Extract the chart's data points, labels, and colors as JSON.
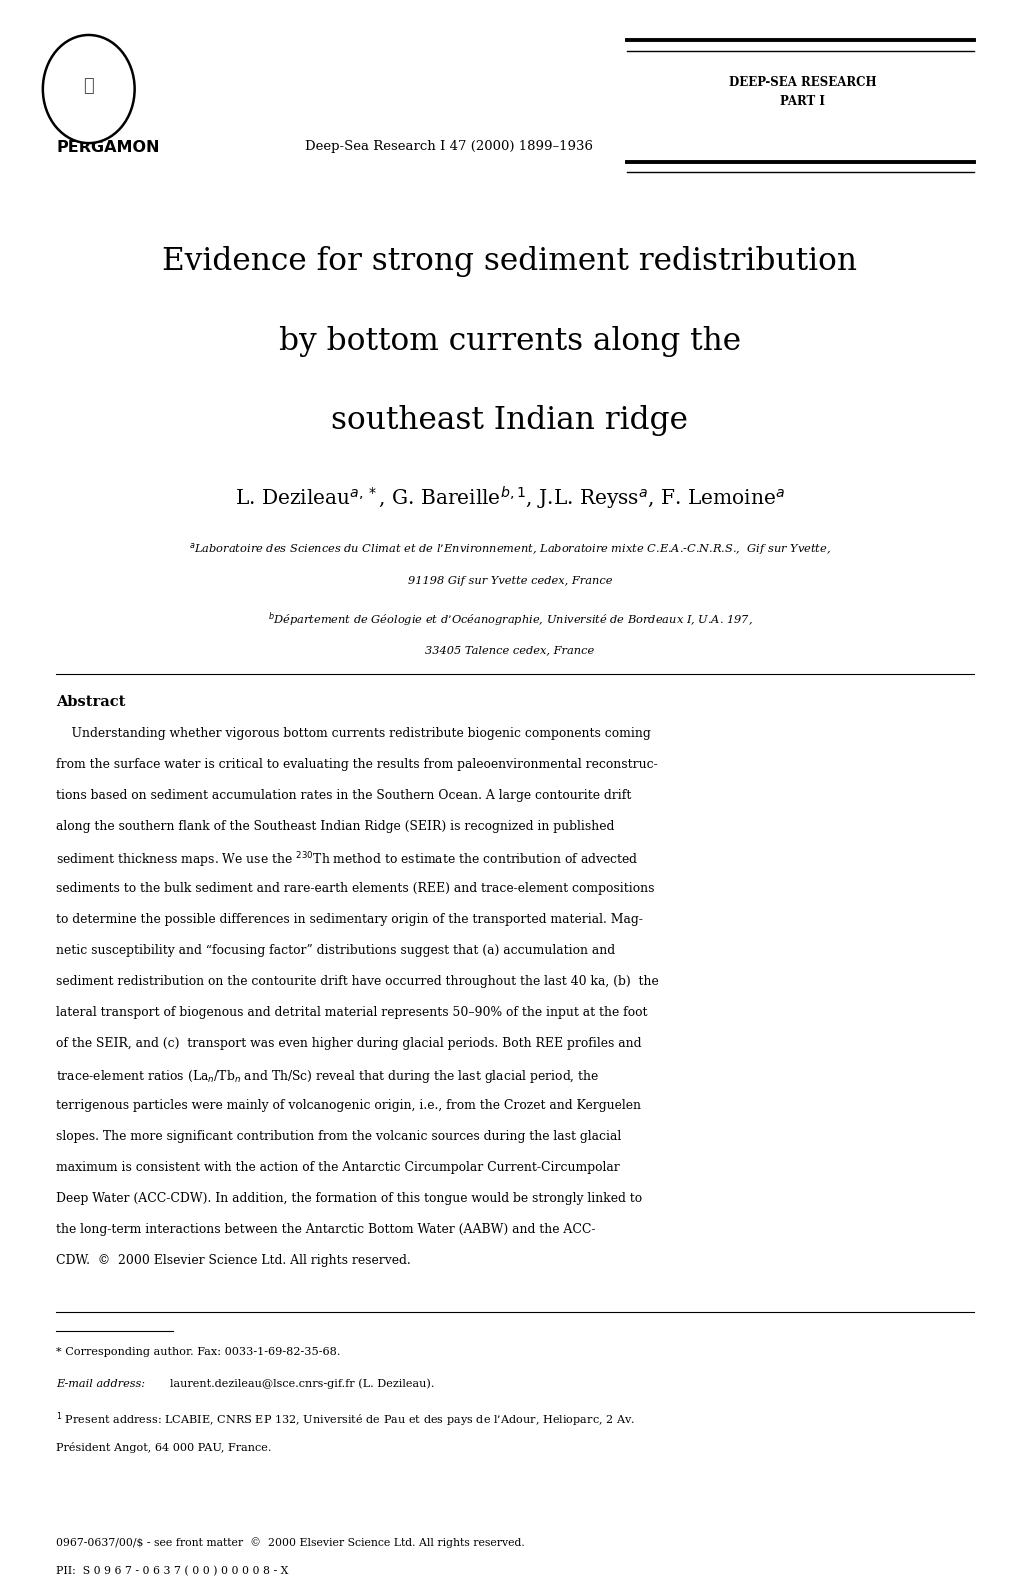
{
  "bg_color": "#ffffff",
  "journal_name": "DEEP-SEA RESEARCH\nPART I",
  "pergamon_text": "PERGAMON",
  "journal_ref": "Deep-Sea Research I 47 (2000) 1899–1936",
  "title_line1": "Evidence for strong sediment redistribution",
  "title_line2": "by bottom currents along the",
  "title_line3": "southeast Indian ridge",
  "author_line": "L. Dezileau$^{a,*}$, G. Bareille$^{b,1}$, J.L. Reyss$^{a}$, F. Lemoine$^{a}$",
  "affil_a1": "$^{a}$Laboratoire des Sciences du Climat et de l’Environnement, Laboratoire mixte C.E.A.-C.N.R.S.,  Gif sur Yvette,",
  "affil_a2": "91198 Gif sur Yvette cedex, France",
  "affil_b1": "$^{b}$Département de Géologie et d’Océanographie, Université de Bordeaux I, U.A. 197,",
  "affil_b2": "33405 Talence cedex, France",
  "abstract_title": "Abstract",
  "abstract_lines": [
    "    Understanding whether vigorous bottom currents redistribute biogenic components coming",
    "from the surface water is critical to evaluating the results from paleoenvironmental reconstruc-",
    "tions based on sediment accumulation rates in the Southern Ocean. A large contourite drift",
    "along the southern flank of the Southeast Indian Ridge (SEIR) is recognized in published",
    "sediment thickness maps. We use the $^{230}$Th method to estimate the contribution of advected",
    "sediments to the bulk sediment and rare-earth elements (REE) and trace-element compositions",
    "to determine the possible differences in sedimentary origin of the transported material. Mag-",
    "netic susceptibility and “focusing factor” distributions suggest that (a) accumulation and",
    "sediment redistribution on the contourite drift have occurred throughout the last 40 ka, (b)  the",
    "lateral transport of biogenous and detrital material represents 50–90% of the input at the foot",
    "of the SEIR, and (c)  transport was even higher during glacial periods. Both REE profiles and",
    "trace-element ratios (La$_{n}$/Tb$_{n}$ and Th/Sc) reveal that during the last glacial period, the",
    "terrigenous particles were mainly of volcanogenic origin, i.e., from the Crozet and Kerguelen",
    "slopes. The more significant contribution from the volcanic sources during the last glacial",
    "maximum is consistent with the action of the Antarctic Circumpolar Current-Circumpolar",
    "Deep Water (ACC-CDW). In addition, the formation of this tongue would be strongly linked to",
    "the long-term interactions between the Antarctic Bottom Water (AABW) and the ACC-",
    "CDW.  ©  2000 Elsevier Science Ltd. All rights reserved."
  ],
  "footnote1": "* Corresponding author. Fax: 0033-1-69-82-35-68.",
  "footnote2": "\\textit{E-mail address:} laurent.dezileau@lsce.cnrs-gif.fr (L. Dezileau).",
  "footnote2_label": "E-mail address: ",
  "footnote2_text": "laurent.dezileau@lsce.cnrs-gif.fr (L. Dezileau).",
  "footnote3_label": "$^{1}$ ",
  "footnote3_text": "Present address: LCABIE, CNRS EP 132, Université de Pau et des pays de l’Adour, Helioparc, 2 Av.",
  "footnote3_text2": "Président Angot, 64 000 PAU, France.",
  "bottom_line1": "0967-0637/00/$ - see front matter  ©  2000 Elsevier Science Ltd. All rights reserved.",
  "bottom_line2": "PII:  S 0 9 6 7 - 0 6 3 7 ( 0 0 ) 0 0 0 0 8 - X"
}
